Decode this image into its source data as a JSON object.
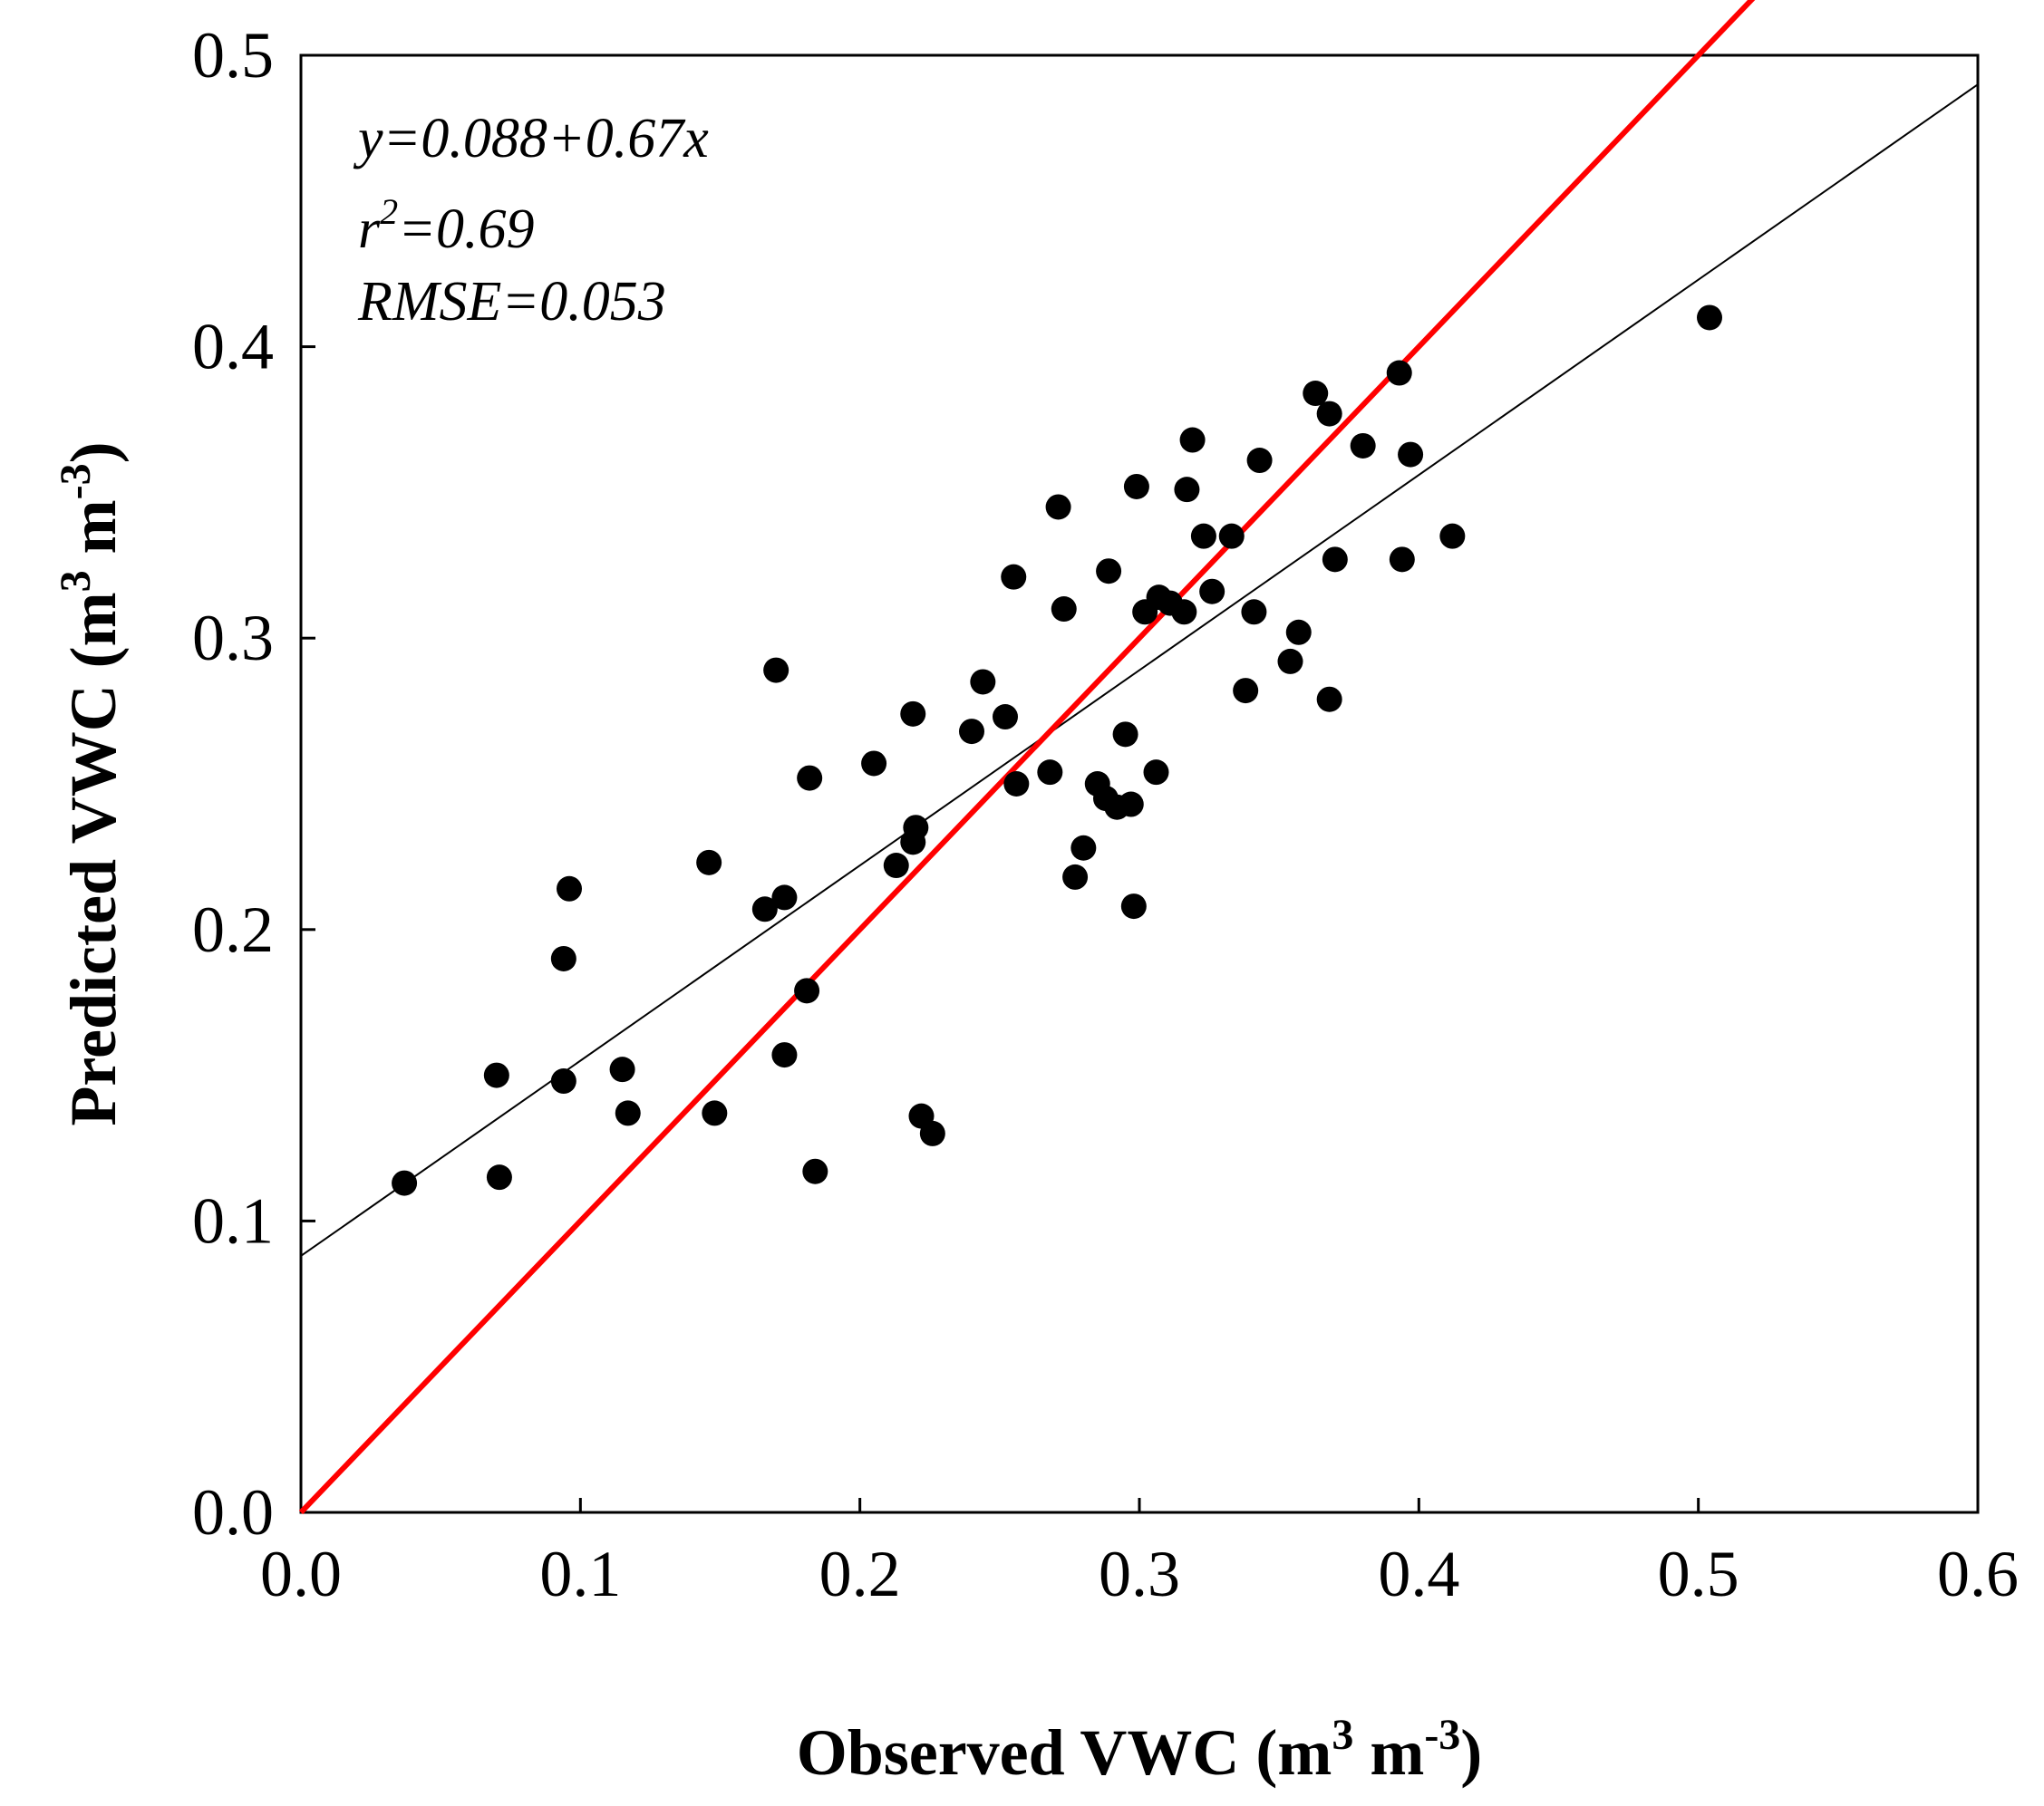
{
  "chart_data": {
    "type": "scatter",
    "title": "",
    "xlabel": "Observed VWC (m3 m-3)",
    "ylabel": "Predicted VWC (m3 m-3)",
    "xlabel_parts": {
      "pre": "Observed VWC (m",
      "sup1": "3",
      "mid": " m",
      "sup2": "-3",
      "post": ")"
    },
    "ylabel_parts": {
      "pre": "Predicted VWC (m",
      "sup1": "3",
      "mid": " m",
      "sup2": "-3",
      "post": ")"
    },
    "xlim": [
      0.0,
      0.6
    ],
    "ylim": [
      0.0,
      0.5
    ],
    "xticks": [
      0.0,
      0.1,
      0.2,
      0.3,
      0.4,
      0.5,
      0.6
    ],
    "yticks": [
      0.0,
      0.1,
      0.2,
      0.3,
      0.4,
      0.5
    ],
    "xtick_labels": [
      "0.0",
      "0.1",
      "0.2",
      "0.3",
      "0.4",
      "0.5",
      "0.6"
    ],
    "ytick_labels": [
      "0.0",
      "0.1",
      "0.2",
      "0.3",
      "0.4",
      "0.5"
    ],
    "grid": false,
    "annotations": {
      "equation": "y=0.088+0.67x",
      "r2_base": "r",
      "r2_sup": "2",
      "r2_value": "=0.69",
      "rmse": "RMSE=0.053"
    },
    "regression_line": {
      "intercept": 0.088,
      "slope": 0.67,
      "color": "#000000"
    },
    "one_to_one_line": {
      "color": "#ff0000"
    },
    "point_color": "#000000",
    "series": [
      {
        "name": "observations",
        "points": [
          [
            0.037,
            0.113
          ],
          [
            0.07,
            0.15
          ],
          [
            0.071,
            0.115
          ],
          [
            0.094,
            0.148
          ],
          [
            0.094,
            0.19
          ],
          [
            0.096,
            0.214
          ],
          [
            0.115,
            0.152
          ],
          [
            0.117,
            0.137
          ],
          [
            0.146,
            0.223
          ],
          [
            0.148,
            0.137
          ],
          [
            0.166,
            0.207
          ],
          [
            0.17,
            0.289
          ],
          [
            0.173,
            0.211
          ],
          [
            0.173,
            0.157
          ],
          [
            0.181,
            0.179
          ],
          [
            0.182,
            0.252
          ],
          [
            0.184,
            0.117
          ],
          [
            0.205,
            0.257
          ],
          [
            0.213,
            0.222
          ],
          [
            0.219,
            0.274
          ],
          [
            0.219,
            0.23
          ],
          [
            0.22,
            0.235
          ],
          [
            0.222,
            0.136
          ],
          [
            0.226,
            0.13
          ],
          [
            0.24,
            0.268
          ],
          [
            0.244,
            0.285
          ],
          [
            0.252,
            0.273
          ],
          [
            0.255,
            0.321
          ],
          [
            0.256,
            0.25
          ],
          [
            0.268,
            0.254
          ],
          [
            0.271,
            0.345
          ],
          [
            0.273,
            0.31
          ],
          [
            0.277,
            0.218
          ],
          [
            0.28,
            0.228
          ],
          [
            0.285,
            0.25
          ],
          [
            0.288,
            0.245
          ],
          [
            0.289,
            0.323
          ],
          [
            0.292,
            0.242
          ],
          [
            0.295,
            0.267
          ],
          [
            0.297,
            0.243
          ],
          [
            0.298,
            0.208
          ],
          [
            0.299,
            0.352
          ],
          [
            0.302,
            0.309
          ],
          [
            0.306,
            0.254
          ],
          [
            0.307,
            0.314
          ],
          [
            0.311,
            0.312
          ],
          [
            0.316,
            0.309
          ],
          [
            0.317,
            0.351
          ],
          [
            0.319,
            0.368
          ],
          [
            0.323,
            0.335
          ],
          [
            0.326,
            0.316
          ],
          [
            0.333,
            0.335
          ],
          [
            0.338,
            0.282
          ],
          [
            0.341,
            0.309
          ],
          [
            0.343,
            0.361
          ],
          [
            0.354,
            0.292
          ],
          [
            0.357,
            0.302
          ],
          [
            0.363,
            0.384
          ],
          [
            0.368,
            0.377
          ],
          [
            0.368,
            0.279
          ],
          [
            0.37,
            0.327
          ],
          [
            0.38,
            0.366
          ],
          [
            0.393,
            0.391
          ],
          [
            0.394,
            0.327
          ],
          [
            0.397,
            0.363
          ],
          [
            0.412,
            0.335
          ],
          [
            0.504,
            0.41
          ]
        ]
      }
    ]
  }
}
